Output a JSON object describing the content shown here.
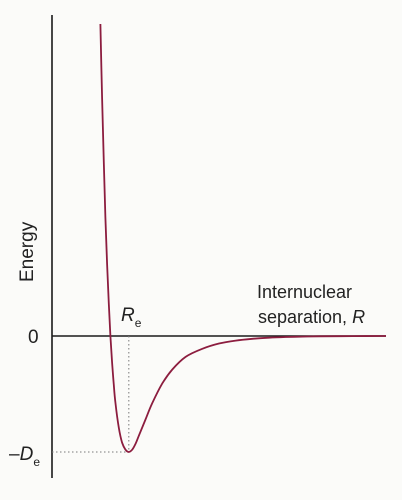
{
  "chart_data": {
    "type": "line",
    "title": "",
    "ylabel": "Energy",
    "xlabel": "",
    "annotation_line1": "Internuclear",
    "annotation_line2_prefix": "separation, ",
    "annotation_line2_variable": "R",
    "y_tick_zero_label": "0",
    "y_tick_depth_prefix": "–",
    "y_tick_depth_symbol": "D",
    "y_tick_depth_subscript": "e",
    "x_marker_symbol": "R",
    "x_marker_subscript": "e",
    "xlim": [
      0,
      1
    ],
    "ylim": [
      -1,
      2.7
    ],
    "grid": false,
    "legend": "none",
    "curve_color": "#8c1d3f",
    "axis_color": "#1a1a1a",
    "guide_color": "#7a7a7a",
    "well": {
      "min_x": 0.23,
      "min_y": -1
    },
    "series": [
      {
        "values_x": [
          0.145,
          0.15,
          0.155,
          0.16,
          0.165,
          0.17,
          0.175,
          0.18,
          0.185,
          0.19,
          0.2,
          0.21,
          0.22,
          0.23,
          0.24,
          0.25,
          0.26,
          0.28,
          0.3,
          0.33,
          0.36,
          0.4,
          0.45,
          0.5,
          0.55,
          0.6,
          0.65,
          0.7,
          0.75,
          0.8,
          0.9,
          1.0
        ],
        "values_y": [
          2.69,
          2.05,
          1.5,
          1.02,
          0.62,
          0.28,
          0.0,
          -0.23,
          -0.42,
          -0.58,
          -0.79,
          -0.92,
          -0.98,
          -1.0,
          -0.98,
          -0.93,
          -0.86,
          -0.72,
          -0.58,
          -0.41,
          -0.29,
          -0.18,
          -0.11,
          -0.065,
          -0.04,
          -0.024,
          -0.015,
          -0.009,
          -0.005,
          -0.003,
          -0.001,
          0.0
        ]
      }
    ]
  }
}
